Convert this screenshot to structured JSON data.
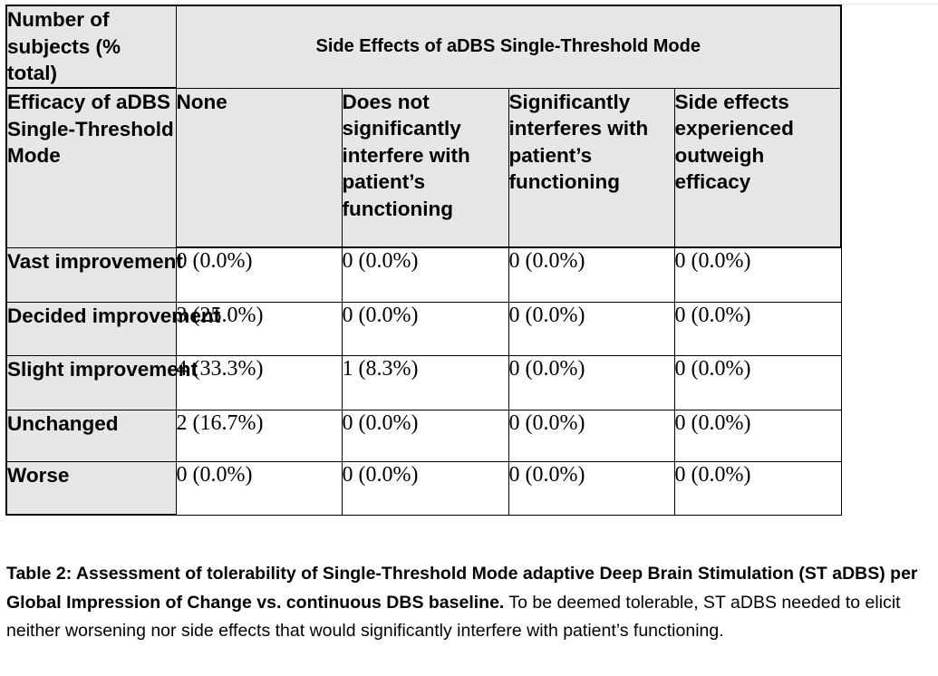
{
  "table": {
    "corner_label": "Number of subjects (% total)",
    "spanning_header": "Side Effects of aDBS Single-Threshold Mode",
    "row_header_label": "Efficacy of aDBS Single-Threshold Mode",
    "columns": [
      "None",
      "Does not significantly interfere with patient’s functioning",
      "Significantly interferes with patient’s functioning",
      "Side effects experienced outweigh efficacy"
    ],
    "rows": [
      {
        "label": "Vast improvement",
        "cells": [
          "0 (0.0%)",
          "0 (0.0%)",
          "0 (0.0%)",
          "0 (0.0%)"
        ]
      },
      {
        "label": "Decided improvement",
        "cells": [
          "3 (25.0%)",
          "0 (0.0%)",
          "0 (0.0%)",
          "0 (0.0%)"
        ]
      },
      {
        "label": "Slight improvement",
        "cells": [
          "4 (33.3%)",
          "1 (8.3%)",
          "0 (0.0%)",
          "0 (0.0%)"
        ]
      },
      {
        "label": "Unchanged",
        "cells": [
          "2 (16.7%)",
          "0 (0.0%)",
          "0 (0.0%)",
          "0 (0.0%)"
        ]
      },
      {
        "label": "Worse",
        "cells": [
          "0 (0.0%)",
          "0 (0.0%)",
          "0 (0.0%)",
          "0 (0.0%)"
        ]
      }
    ]
  },
  "caption": {
    "bold": "Table 2: Assessment of tolerability of Single-Threshold Mode adaptive Deep Brain Stimulation (ST aDBS) per Global Impression of Change vs. continuous DBS baseline.",
    "text": " To be deemed tolerable, ST aDBS needed to elicit neither worsening nor side effects that would significantly interfere with patient’s functioning."
  }
}
